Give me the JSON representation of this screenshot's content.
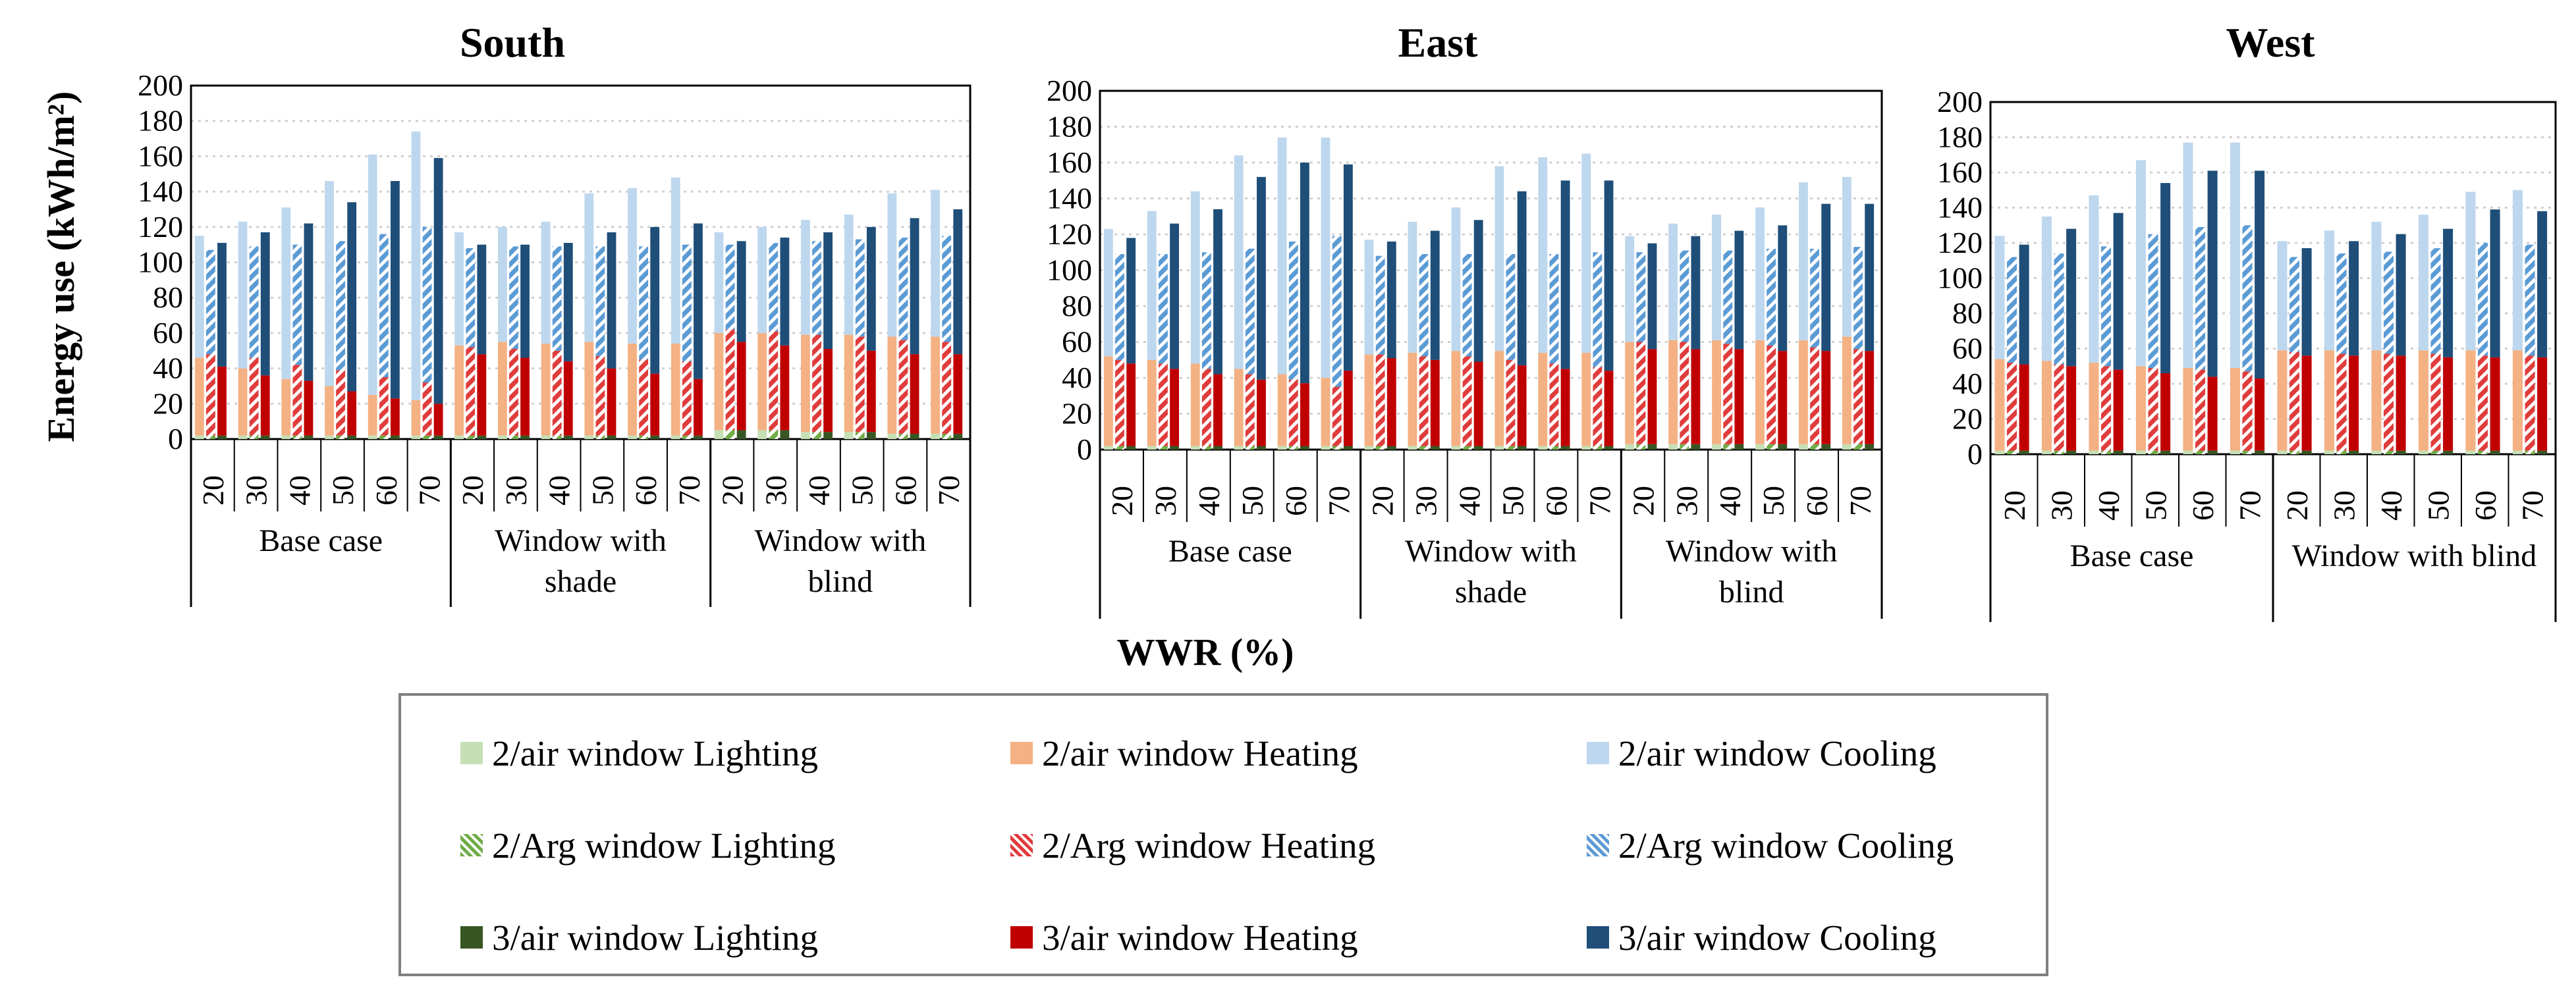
{
  "chart_data": {
    "type": "bar",
    "stacked": true,
    "ylabel": "Energy use (kWh/m²)",
    "xlabel": "WWR (%)",
    "ylim": [
      0,
      200
    ],
    "yticks": [
      0,
      20,
      40,
      60,
      80,
      100,
      120,
      140,
      160,
      180,
      200
    ],
    "wwr_ticks": [
      "20",
      "30",
      "40",
      "50",
      "60",
      "70"
    ],
    "grid": true,
    "legend_position": "bottom",
    "components": [
      "Lighting",
      "Heating",
      "Cooling"
    ],
    "colors": {
      "2/air window Lighting": "#c5e0b4",
      "2/air window Heating": "#f4b183",
      "2/air window Cooling": "#bdd7ee",
      "2/Arg window Lighting": "#70ad47",
      "2/Arg window Heating": "#e03c3c",
      "2/Arg window Cooling": "#5b9bd5",
      "3/air window Lighting": "#375623",
      "3/air window Heating": "#c00000",
      "3/air window Cooling": "#1f4e79"
    },
    "legend": [
      {
        "label": "2/air window Lighting",
        "color": "#c5e0b4",
        "pattern": "solid"
      },
      {
        "label": "2/air window Heating",
        "color": "#f4b183",
        "pattern": "solid"
      },
      {
        "label": "2/air window Cooling",
        "color": "#bdd7ee",
        "pattern": "solid"
      },
      {
        "label": "2/Arg window Lighting",
        "color": "#70ad47",
        "pattern": "hatch"
      },
      {
        "label": "2/Arg window Heating",
        "color": "#e03c3c",
        "pattern": "hatch"
      },
      {
        "label": "2/Arg window Cooling",
        "color": "#5b9bd5",
        "pattern": "hatch"
      },
      {
        "label": "3/air window Lighting",
        "color": "#375623",
        "pattern": "solid"
      },
      {
        "label": "3/air window Heating",
        "color": "#c00000",
        "pattern": "solid"
      },
      {
        "label": "3/air window Cooling",
        "color": "#1f4e79",
        "pattern": "solid"
      }
    ],
    "panels": [
      {
        "title": "South",
        "groups": [
          {
            "label": "Base case",
            "label_lines": [
              "Base case"
            ],
            "totals": {
              "2/air window": [
                115,
                123,
                131,
                146,
                161,
                174
              ],
              "2/Arg window": [
                107,
                109,
                110,
                112,
                116,
                120
              ],
              "3/air window": [
                111,
                117,
                122,
                134,
                146,
                159
              ]
            },
            "heating": {
              "2/air window": [
                44,
                38,
                32,
                28,
                23,
                20
              ],
              "2/Arg window": [
                46,
                44,
                40,
                37,
                33,
                30
              ],
              "3/air window": [
                39,
                34,
                31,
                25,
                21,
                18
              ]
            },
            "lighting": {
              "2/air window": [
                2,
                2,
                2,
                2,
                2,
                2
              ],
              "2/Arg window": [
                2,
                2,
                2,
                2,
                2,
                2
              ],
              "3/air window": [
                2,
                2,
                2,
                2,
                2,
                2
              ]
            }
          },
          {
            "label": "Window with shade",
            "label_lines": [
              "Window with",
              "shade"
            ],
            "totals": {
              "2/air window": [
                117,
                120,
                123,
                139,
                142,
                148
              ],
              "2/Arg window": [
                108,
                109,
                109,
                109,
                109,
                110
              ],
              "3/air window": [
                110,
                110,
                111,
                117,
                120,
                122
              ]
            },
            "heating": {
              "2/air window": [
                51,
                53,
                52,
                53,
                52,
                52
              ],
              "2/Arg window": [
                50,
                49,
                48,
                45,
                43,
                42
              ],
              "3/air window": [
                46,
                44,
                42,
                38,
                35,
                32
              ]
            },
            "lighting": {
              "2/air window": [
                2,
                2,
                2,
                2,
                2,
                2
              ],
              "2/Arg window": [
                2,
                2,
                2,
                2,
                2,
                2
              ],
              "3/air window": [
                2,
                2,
                2,
                2,
                2,
                2
              ]
            }
          },
          {
            "label": "Window with blind",
            "label_lines": [
              "Window with",
              "blind"
            ],
            "totals": {
              "2/air window": [
                117,
                120,
                124,
                127,
                139,
                141
              ],
              "2/Arg window": [
                110,
                111,
                112,
                113,
                114,
                115
              ],
              "3/air window": [
                112,
                114,
                117,
                120,
                125,
                130
              ]
            },
            "heating": {
              "2/air window": [
                55,
                55,
                55,
                55,
                55,
                55
              ],
              "2/Arg window": [
                57,
                56,
                55,
                54,
                53,
                52
              ],
              "3/air window": [
                50,
                48,
                47,
                46,
                45,
                45
              ]
            },
            "lighting": {
              "2/air window": [
                5,
                5,
                4,
                4,
                3,
                3
              ],
              "2/Arg window": [
                5,
                5,
                4,
                4,
                3,
                3
              ],
              "3/air window": [
                5,
                5,
                4,
                4,
                3,
                3
              ]
            }
          }
        ]
      },
      {
        "title": "East",
        "groups": [
          {
            "label": "Base case",
            "label_lines": [
              "Base case"
            ],
            "totals": {
              "2/air window": [
                123,
                133,
                144,
                164,
                174,
                174
              ],
              "2/Arg window": [
                109,
                109,
                110,
                112,
                116,
                119
              ],
              "3/air window": [
                118,
                126,
                134,
                152,
                160,
                159
              ]
            },
            "heating": {
              "2/air window": [
                50,
                48,
                46,
                43,
                40,
                38
              ],
              "2/Arg window": [
                48,
                46,
                43,
                40,
                37,
                33
              ],
              "3/air window": [
                46,
                43,
                40,
                37,
                35,
                42
              ]
            },
            "lighting": {
              "2/air window": [
                2,
                2,
                2,
                2,
                2,
                2
              ],
              "2/Arg window": [
                2,
                2,
                2,
                2,
                2,
                2
              ],
              "3/air window": [
                2,
                2,
                2,
                2,
                2,
                2
              ]
            }
          },
          {
            "label": "Window with shade",
            "label_lines": [
              "Window with",
              "shade"
            ],
            "totals": {
              "2/air window": [
                117,
                127,
                135,
                158,
                163,
                165
              ],
              "2/Arg window": [
                108,
                109,
                109,
                109,
                109,
                110
              ],
              "3/air window": [
                116,
                122,
                128,
                144,
                150,
                150
              ]
            },
            "heating": {
              "2/air window": [
                51,
                52,
                53,
                53,
                52,
                52
              ],
              "2/Arg window": [
                51,
                50,
                50,
                48,
                46,
                44
              ],
              "3/air window": [
                49,
                48,
                47,
                45,
                43,
                42
              ]
            },
            "lighting": {
              "2/air window": [
                2,
                2,
                2,
                2,
                2,
                2
              ],
              "2/Arg window": [
                2,
                2,
                2,
                2,
                2,
                2
              ],
              "3/air window": [
                2,
                2,
                2,
                2,
                2,
                2
              ]
            }
          },
          {
            "label": "Window with blind",
            "label_lines": [
              "Window with",
              "blind"
            ],
            "totals": {
              "2/air window": [
                119,
                126,
                131,
                135,
                149,
                152
              ],
              "2/Arg window": [
                110,
                111,
                111,
                112,
                112,
                113
              ],
              "3/air window": [
                115,
                119,
                122,
                125,
                137,
                137
              ]
            },
            "heating": {
              "2/air window": [
                57,
                58,
                58,
                58,
                58,
                60
              ],
              "2/Arg window": [
                57,
                57,
                56,
                55,
                54,
                53
              ],
              "3/air window": [
                53,
                53,
                53,
                52,
                52,
                52
              ]
            },
            "lighting": {
              "2/air window": [
                3,
                3,
                3,
                3,
                3,
                3
              ],
              "2/Arg window": [
                3,
                3,
                3,
                3,
                3,
                3
              ],
              "3/air window": [
                3,
                3,
                3,
                3,
                3,
                3
              ]
            }
          }
        ]
      },
      {
        "title": "West",
        "groups": [
          {
            "label": "Base case",
            "label_lines": [
              "Base case"
            ],
            "totals": {
              "2/air window": [
                124,
                135,
                147,
                167,
                177,
                177
              ],
              "2/Arg window": [
                112,
                114,
                118,
                125,
                129,
                130
              ],
              "3/air window": [
                119,
                128,
                137,
                154,
                161,
                161
              ]
            },
            "heating": {
              "2/air window": [
                52,
                51,
                50,
                48,
                47,
                47
              ],
              "2/Arg window": [
                50,
                49,
                48,
                47,
                46,
                45
              ],
              "3/air window": [
                49,
                48,
                46,
                44,
                42,
                41
              ]
            },
            "lighting": {
              "2/air window": [
                2,
                2,
                2,
                2,
                2,
                2
              ],
              "2/Arg window": [
                2,
                2,
                2,
                2,
                2,
                2
              ],
              "3/air window": [
                2,
                2,
                2,
                2,
                2,
                2
              ]
            }
          },
          {
            "label": "Window with blind",
            "label_lines": [
              "Window with blind"
            ],
            "totals": {
              "2/air window": [
                121,
                127,
                132,
                136,
                149,
                150
              ],
              "2/Arg window": [
                112,
                114,
                115,
                117,
                120,
                119
              ],
              "3/air window": [
                117,
                121,
                125,
                128,
                139,
                138
              ]
            },
            "heating": {
              "2/air window": [
                57,
                57,
                57,
                57,
                57,
                57
              ],
              "2/Arg window": [
                56,
                55,
                55,
                55,
                54,
                54
              ],
              "3/air window": [
                54,
                54,
                54,
                53,
                53,
                53
              ]
            },
            "lighting": {
              "2/air window": [
                2,
                2,
                2,
                2,
                2,
                2
              ],
              "2/Arg window": [
                2,
                2,
                2,
                2,
                2,
                2
              ],
              "3/air window": [
                2,
                2,
                2,
                2,
                2,
                2
              ]
            }
          }
        ]
      }
    ]
  }
}
